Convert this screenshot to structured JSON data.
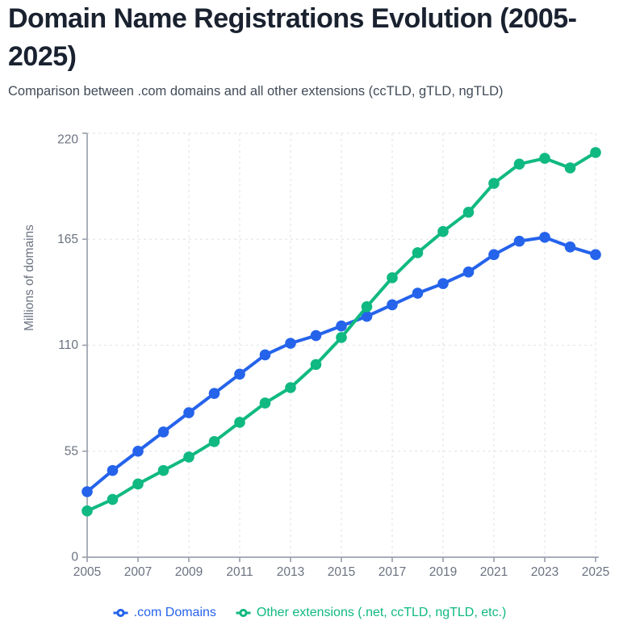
{
  "header": {
    "title": "Domain Name Registrations Evolution (2005-2025)",
    "subtitle": "Comparison between .com domains and all other extensions (ccTLD, gTLD, ngTLD)"
  },
  "colors": {
    "com_blue": "#2563eb",
    "other_green": "#10b981",
    "axis_line": "#9ca3af",
    "grid_line": "#e5e7eb",
    "tick_text": "#6b7280"
  },
  "chart_data": {
    "type": "line",
    "title": "Domain Name Registrations Evolution (2005-2025)",
    "subtitle": "Comparison between .com domains and all other extensions (ccTLD, gTLD, ngTLD)",
    "xlabel": "",
    "ylabel": "Millions of domains",
    "x": [
      2005,
      2006,
      2007,
      2008,
      2009,
      2010,
      2011,
      2012,
      2013,
      2014,
      2015,
      2016,
      2017,
      2018,
      2019,
      2020,
      2021,
      2022,
      2023,
      2024,
      2025
    ],
    "x_tick_labels": [
      "2005",
      "2007",
      "2009",
      "2011",
      "2013",
      "2015",
      "2017",
      "2019",
      "2021",
      "2023",
      "2025"
    ],
    "y_ticks": [
      0,
      55,
      110,
      165,
      220
    ],
    "ylim": [
      0,
      220
    ],
    "grid": "dashed, horizontal and vertical",
    "legend_position": "bottom",
    "point_style": "filled-circle",
    "series": [
      {
        "name": ".com Domains",
        "color": "#2563eb",
        "values": [
          34,
          45,
          55,
          65,
          75,
          85,
          95,
          105,
          111,
          115,
          120,
          125,
          131,
          137,
          142,
          148,
          157,
          164,
          166,
          161,
          157
        ]
      },
      {
        "name": "Other extensions (.net, ccTLD, ngTLD, etc.)",
        "color": "#10b981",
        "values": [
          24,
          30,
          38,
          45,
          52,
          60,
          70,
          80,
          88,
          100,
          114,
          130,
          145,
          158,
          169,
          179,
          194,
          204,
          207,
          202,
          210
        ]
      }
    ]
  }
}
